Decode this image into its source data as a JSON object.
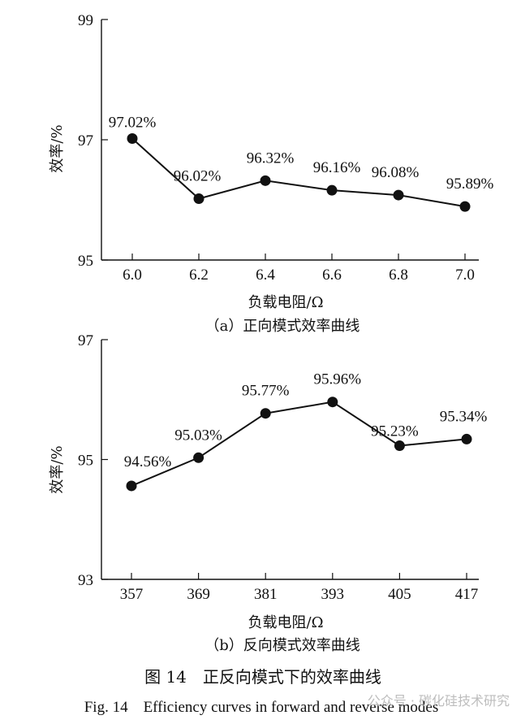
{
  "chart_data": [
    {
      "type": "line",
      "subtitle": "（a）正向模式效率曲线",
      "xlabel": "负载电阻/Ω",
      "ylabel": "效率/%",
      "ylim": [
        95,
        99
      ],
      "yticks": [
        "95",
        "97",
        "99"
      ],
      "categories": [
        "6.0",
        "6.2",
        "6.4",
        "6.6",
        "6.8",
        "7.0"
      ],
      "values": [
        97.02,
        96.02,
        96.32,
        96.16,
        96.08,
        95.89
      ],
      "labels": [
        "97.02%",
        "96.02%",
        "96.32%",
        "96.16%",
        "96.08%",
        "95.89%"
      ],
      "grid": false
    },
    {
      "type": "line",
      "subtitle": "（b）反向模式效率曲线",
      "xlabel": "负载电阻/Ω",
      "ylabel": "效率/%",
      "ylim": [
        93,
        97
      ],
      "yticks": [
        "93",
        "95",
        "97"
      ],
      "categories": [
        "357",
        "369",
        "381",
        "393",
        "405",
        "417"
      ],
      "values": [
        94.56,
        95.03,
        95.77,
        95.96,
        95.23,
        95.34
      ],
      "labels": [
        "94.56%",
        "95.03%",
        "95.77%",
        "95.96%",
        "95.23%",
        "95.34%"
      ],
      "grid": false
    }
  ],
  "caption": {
    "zh": "图 14　正反向模式下的效率曲线",
    "en": "Fig. 14　Efficiency curves in forward and reverse modes"
  },
  "watermark": "公众号 · 碳化硅技术研究"
}
